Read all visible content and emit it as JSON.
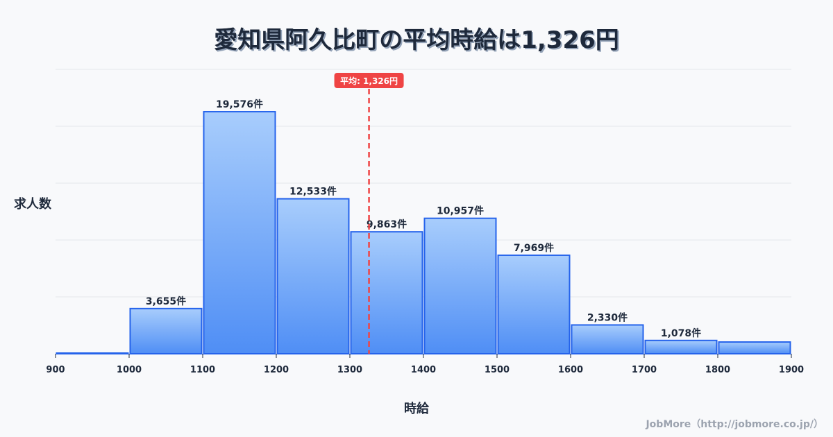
{
  "title": "愛知県阿久比町の平均時給は1,326円",
  "axis": {
    "ylabel": "求人数",
    "xlabel": "時給"
  },
  "average": {
    "label": "平均: 1,326円",
    "value": 1326,
    "color": "#ef4444"
  },
  "credit": "JobMore（http://jobmore.co.jp/）",
  "colors": {
    "bar_top": "#a8cdfc",
    "bar_bottom": "#4f8ef5",
    "bar_border": "#2563eb",
    "grid": "#e5e7eb",
    "text": "#1e293b"
  },
  "chart_data": {
    "type": "bar",
    "title": "愛知県阿久比町の平均時給は1,326円",
    "xlabel": "時給",
    "ylabel": "求人数",
    "x_ticks": [
      900,
      1000,
      1100,
      1200,
      1300,
      1400,
      1500,
      1600,
      1700,
      1800,
      1900
    ],
    "bins": [
      {
        "from": 900,
        "to": 1000,
        "value": 30,
        "label": ""
      },
      {
        "from": 1000,
        "to": 1100,
        "value": 3655,
        "label": "3,655件"
      },
      {
        "from": 1100,
        "to": 1200,
        "value": 19576,
        "label": "19,576件"
      },
      {
        "from": 1200,
        "to": 1300,
        "value": 12533,
        "label": "12,533件"
      },
      {
        "from": 1300,
        "to": 1400,
        "value": 9863,
        "label": "9,863件"
      },
      {
        "from": 1400,
        "to": 1500,
        "value": 10957,
        "label": "10,957件"
      },
      {
        "from": 1500,
        "to": 1600,
        "value": 7969,
        "label": "7,969件"
      },
      {
        "from": 1600,
        "to": 1700,
        "value": 2330,
        "label": "2,330件"
      },
      {
        "from": 1700,
        "to": 1800,
        "value": 1078,
        "label": "1,078件"
      },
      {
        "from": 1800,
        "to": 1900,
        "value": 950,
        "label": ""
      }
    ],
    "xlim": [
      900,
      1900
    ],
    "ylim": [
      0,
      23000
    ],
    "grid": true,
    "reference_line": {
      "x": 1326,
      "label": "平均: 1,326円",
      "style": "dashed",
      "color": "#ef4444"
    }
  }
}
